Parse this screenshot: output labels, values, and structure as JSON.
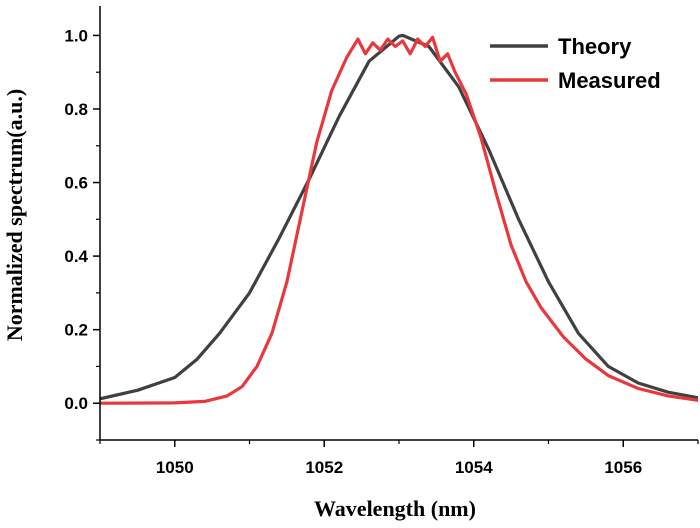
{
  "chart_data": {
    "type": "line",
    "xlabel": "Wavelength (nm)",
    "ylabel": "Normalized spectrum(a.u.)",
    "xlim": [
      1049,
      1057
    ],
    "ylim": [
      -0.1,
      1.08
    ],
    "xticks": [
      1050,
      1052,
      1054,
      1056
    ],
    "xtick_labels": [
      "1050",
      "1052",
      "1054",
      "1056"
    ],
    "yticks": [
      0.0,
      0.2,
      0.4,
      0.6,
      0.8,
      1.0
    ],
    "ytick_labels": [
      "0.0",
      "0.2",
      "0.4",
      "0.6",
      "0.8",
      "1.0"
    ],
    "grid": false,
    "legend": "top-right",
    "series": [
      {
        "name": "Theory",
        "color": "#404040",
        "x": [
          1049.0,
          1049.5,
          1050.0,
          1050.3,
          1050.6,
          1051.0,
          1051.4,
          1051.8,
          1052.2,
          1052.6,
          1053.0,
          1053.05,
          1053.4,
          1053.8,
          1054.2,
          1054.6,
          1055.0,
          1055.4,
          1055.8,
          1056.2,
          1056.6,
          1057.0
        ],
        "y": [
          0.012,
          0.035,
          0.07,
          0.12,
          0.19,
          0.3,
          0.45,
          0.61,
          0.78,
          0.93,
          0.998,
          1.0,
          0.97,
          0.86,
          0.69,
          0.5,
          0.33,
          0.19,
          0.1,
          0.055,
          0.03,
          0.015
        ]
      },
      {
        "name": "Measured",
        "color": "#e8383d",
        "x": [
          1049.0,
          1050.0,
          1050.4,
          1050.7,
          1050.9,
          1051.1,
          1051.3,
          1051.5,
          1051.7,
          1051.9,
          1052.1,
          1052.3,
          1052.45,
          1052.55,
          1052.65,
          1052.75,
          1052.85,
          1052.95,
          1053.05,
          1053.15,
          1053.25,
          1053.35,
          1053.45,
          1053.55,
          1053.65,
          1053.75,
          1053.9,
          1054.1,
          1054.3,
          1054.5,
          1054.7,
          1054.9,
          1055.2,
          1055.5,
          1055.8,
          1056.2,
          1056.6,
          1057.0
        ],
        "y": [
          0.0,
          0.001,
          0.005,
          0.02,
          0.045,
          0.1,
          0.19,
          0.33,
          0.52,
          0.71,
          0.85,
          0.94,
          0.99,
          0.95,
          0.98,
          0.96,
          0.99,
          0.97,
          0.985,
          0.95,
          0.99,
          0.97,
          0.995,
          0.93,
          0.95,
          0.9,
          0.84,
          0.72,
          0.57,
          0.43,
          0.33,
          0.26,
          0.18,
          0.12,
          0.075,
          0.04,
          0.02,
          0.008
        ]
      }
    ]
  }
}
